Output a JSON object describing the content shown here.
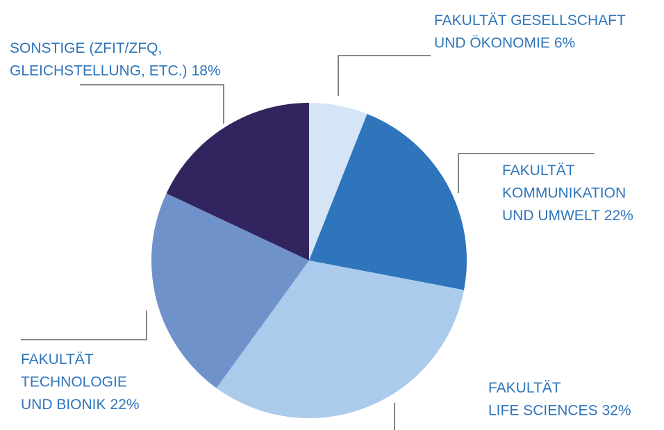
{
  "chart_data": {
    "type": "pie",
    "categories": [
      [
        "FAKULTÄT GESELLSCHAFT",
        "UND ÖKONOMIE"
      ],
      [
        "FAKULTÄT",
        "KOMMUNIKATION",
        "UND UMWELT"
      ],
      [
        "FAKULTÄT",
        "LIFE SCIENCES"
      ],
      [
        "FAKULTÄT",
        "TECHNOLOGIE",
        "UND BIONIK"
      ],
      [
        "SONSTIGE (ZFIT/ZFQ,",
        "GLEICHSTELLUNG, ETC.)"
      ]
    ],
    "values": [
      6,
      22,
      32,
      22,
      18
    ],
    "value_labels": [
      "6%",
      "22%",
      "32%",
      "22%",
      "18%"
    ],
    "colors": [
      "#d5e5f5",
      "#2e75bb",
      "#abcbec",
      "#7092cb",
      "#32245e"
    ]
  }
}
